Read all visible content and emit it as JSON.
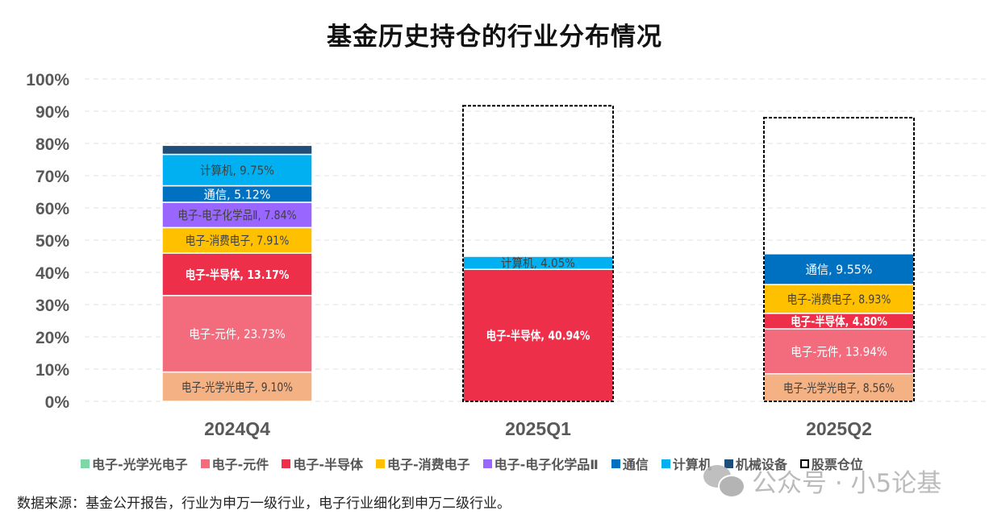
{
  "chart_data": {
    "type": "bar",
    "stacked": true,
    "title": "基金历史持仓的行业分布情况",
    "xlabel": "",
    "ylabel": "",
    "ylim": [
      0,
      100
    ],
    "yticks": [
      "0%",
      "10%",
      "20%",
      "30%",
      "40%",
      "50%",
      "60%",
      "70%",
      "80%",
      "90%",
      "100%"
    ],
    "grid": true,
    "legend_position": "bottom",
    "categories": [
      "2024Q4",
      "2025Q1",
      "2025Q2"
    ],
    "series": [
      {
        "name": "电子-光学光电子",
        "color": "#F4B183",
        "legend_color": "#7FD6A6",
        "label_color": "#404040",
        "label_bold": false,
        "values": [
          9.1,
          0,
          8.56
        ],
        "labels": [
          "电子-光学光电子, 9.10%",
          "",
          "电子-光学光电子, 8.56%"
        ]
      },
      {
        "name": "电子-元件",
        "color": "#F36C7E",
        "label_color": "#ffffff",
        "label_bold": false,
        "values": [
          23.73,
          0,
          13.94
        ],
        "labels": [
          "电子-元件, 23.73%",
          "",
          "电子-元件, 13.94%"
        ]
      },
      {
        "name": "电子-半导体",
        "color": "#EE2F4A",
        "label_color": "#ffffff",
        "label_bold": true,
        "values": [
          13.17,
          40.94,
          4.8
        ],
        "labels": [
          "电子-半导体, 13.17%",
          "电子-半导体, 40.94%",
          "电子-半导体, 4.80%"
        ]
      },
      {
        "name": "电子-消费电子",
        "color": "#FFC000",
        "label_color": "#404040",
        "label_bold": false,
        "values": [
          7.91,
          0,
          8.93
        ],
        "labels": [
          "电子-消费电子, 7.91%",
          "",
          "电子-消费电子, 8.93%"
        ]
      },
      {
        "name": "电子-电子化学品Ⅱ",
        "color": "#9966FF",
        "label_color": "#404040",
        "label_bold": false,
        "values": [
          7.84,
          0,
          0
        ],
        "labels": [
          "电子-电子化学品Ⅱ, 7.84%",
          "",
          ""
        ]
      },
      {
        "name": "通信",
        "color": "#0070C0",
        "label_color": "#ffffff",
        "label_bold": false,
        "values": [
          5.12,
          0,
          9.55
        ],
        "labels": [
          "通信, 5.12%",
          "",
          "通信, 9.55%"
        ]
      },
      {
        "name": "计算机",
        "color": "#00B0F0",
        "label_color": "#404040",
        "label_bold": false,
        "values": [
          9.75,
          4.05,
          0
        ],
        "labels": [
          "计算机, 9.75%",
          "计算机, 4.05%",
          ""
        ]
      },
      {
        "name": "机械设备",
        "color": "#1F4E79",
        "label_color": "#ffffff",
        "label_bold": false,
        "values": [
          2.8,
          0,
          0
        ],
        "labels": [
          "",
          "",
          ""
        ]
      }
    ],
    "stock_position": {
      "name": "股票仓位",
      "style": "dashed-outline",
      "values": [
        null,
        91.7,
        88.0
      ]
    }
  },
  "legend": [
    {
      "label": "电子-光学光电子",
      "color": "#7FD6A6",
      "dashed": false
    },
    {
      "label": "电子-元件",
      "color": "#F36C7E",
      "dashed": false
    },
    {
      "label": "电子-半导体",
      "color": "#EE2F4A",
      "dashed": false
    },
    {
      "label": "电子-消费电子",
      "color": "#FFC000",
      "dashed": false
    },
    {
      "label": "电子-电子化学品Ⅱ",
      "color": "#9966FF",
      "dashed": false
    },
    {
      "label": "通信",
      "color": "#0070C0",
      "dashed": false
    },
    {
      "label": "计算机",
      "color": "#00B0F0",
      "dashed": false
    },
    {
      "label": "机械设备",
      "color": "#1F4E79",
      "dashed": false
    },
    {
      "label": "股票仓位",
      "color": "#000000",
      "dashed": true
    }
  ],
  "source": "数据来源：基金公开报告，行业为申万一级行业，电子行业细化到申万二级行业。",
  "watermark": "公众号 · 小5论基"
}
